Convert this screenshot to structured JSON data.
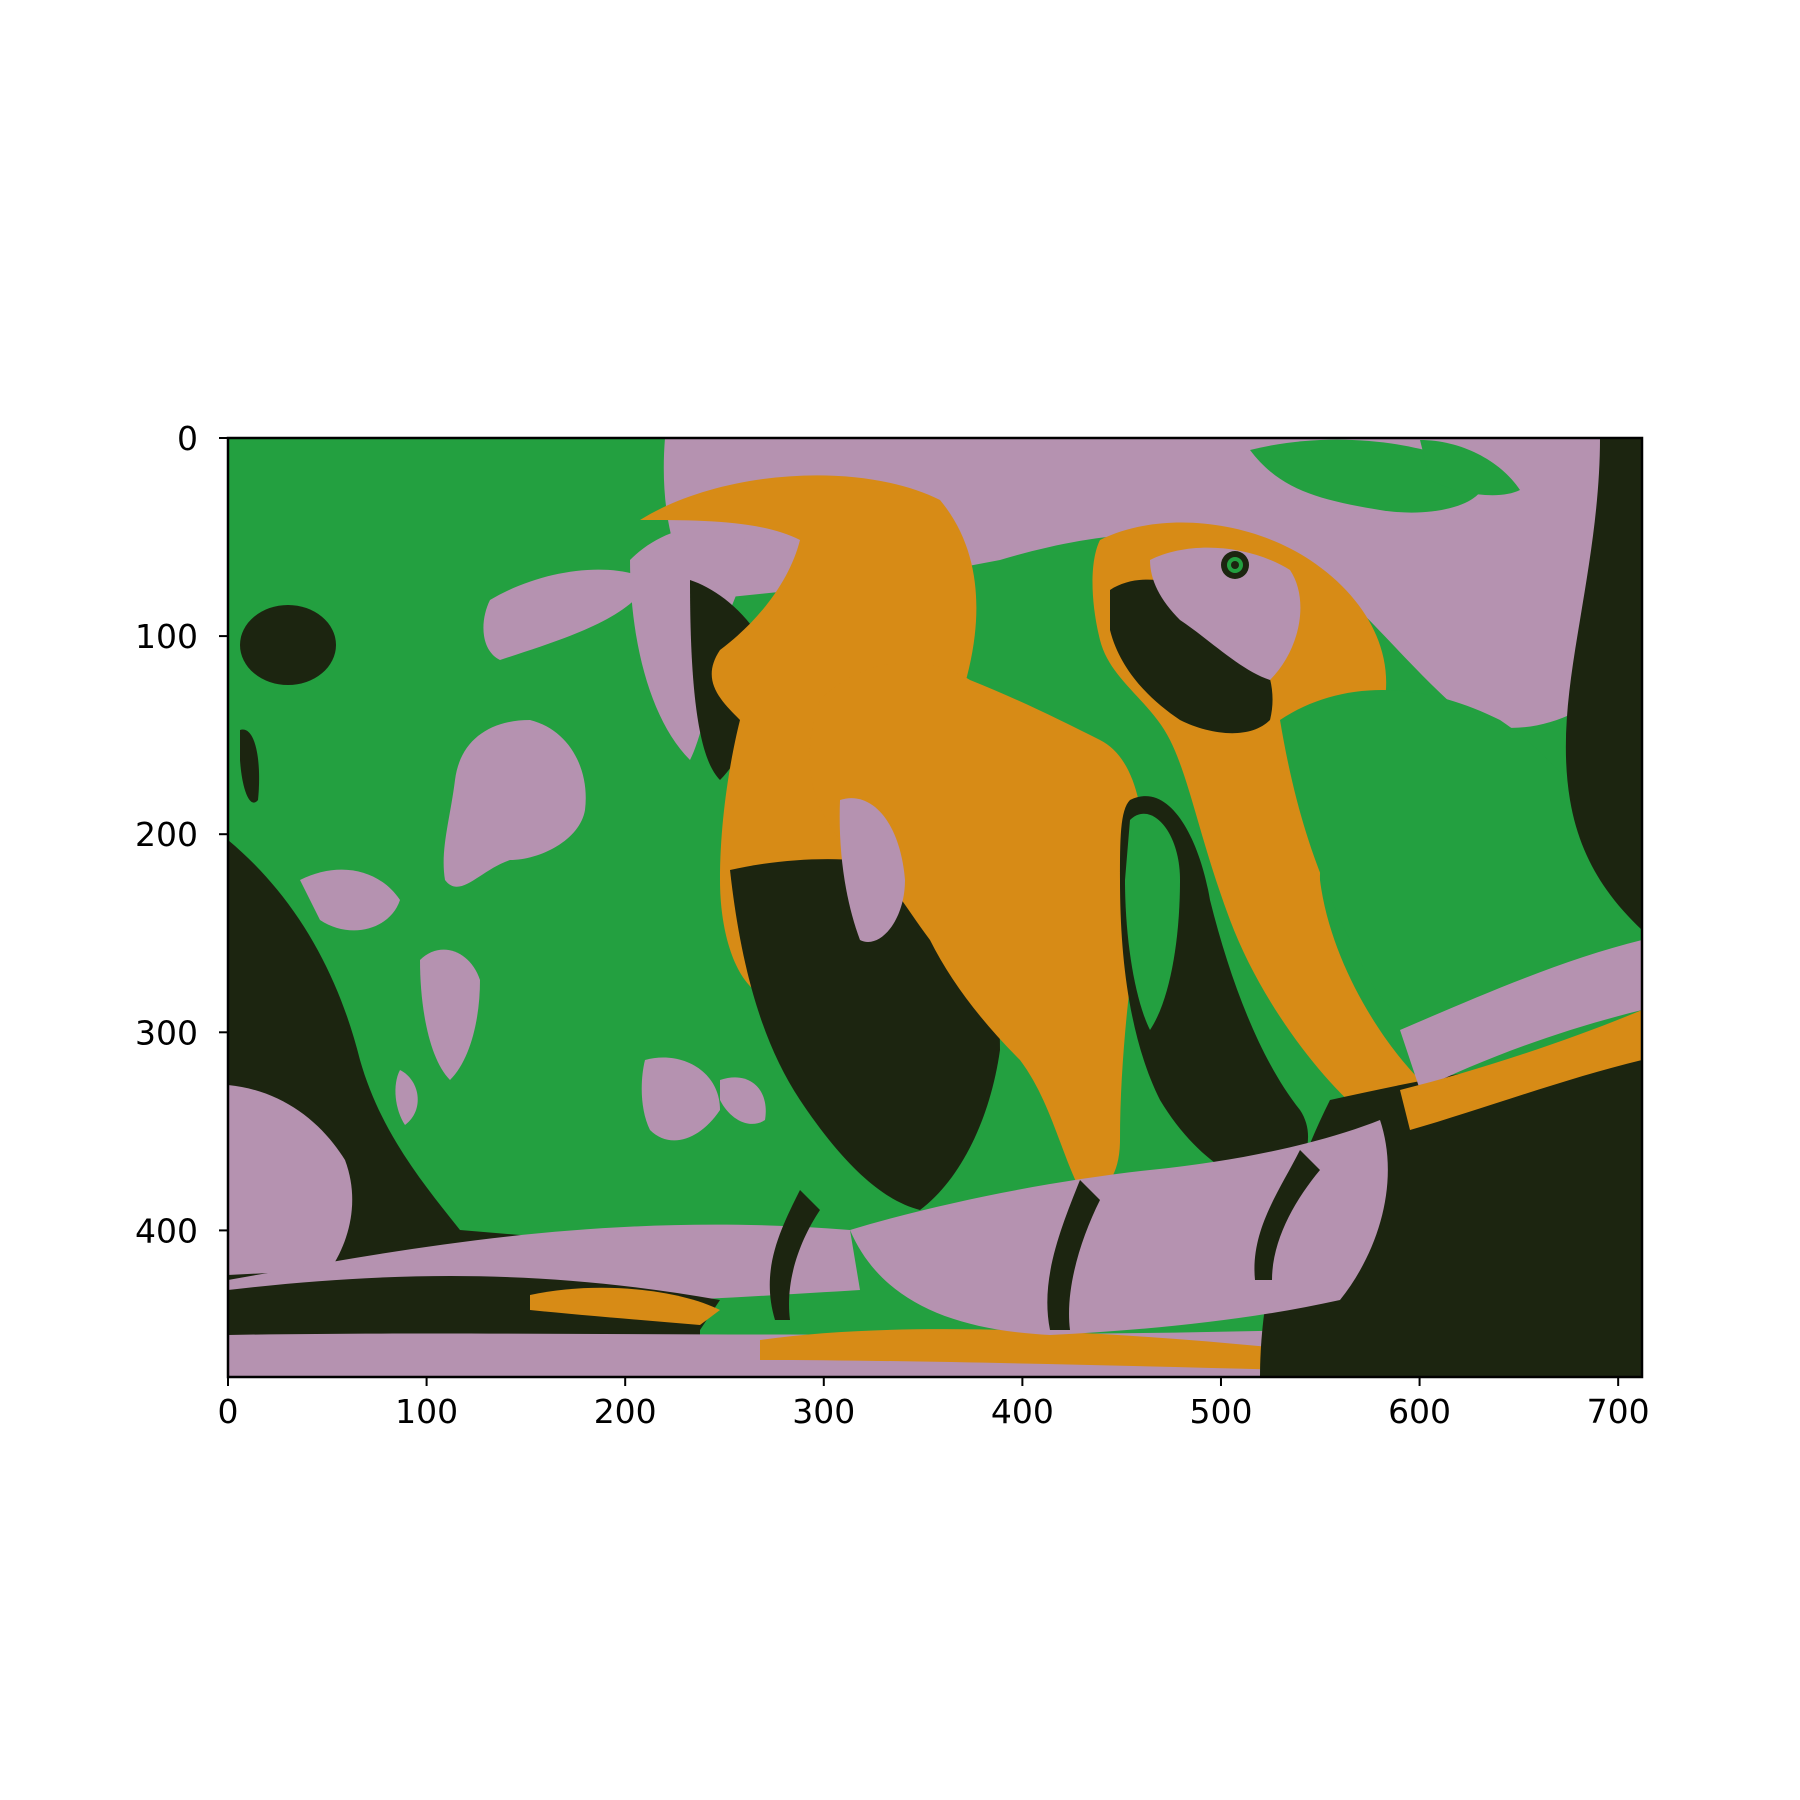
{
  "figure": {
    "description_type": "image",
    "xaxis": {
      "ticks": [
        "0",
        "100",
        "200",
        "300",
        "400",
        "500",
        "600",
        "700"
      ],
      "range": [
        0,
        712
      ]
    },
    "yaxis": {
      "ticks": [
        "0",
        "100",
        "200",
        "300",
        "400"
      ],
      "range": [
        0,
        474
      ],
      "inverted": true
    }
  },
  "palette": {
    "green": "#23a040",
    "pink": "#b592b0",
    "orange": "#d78b16",
    "dark": "#1c2510"
  }
}
